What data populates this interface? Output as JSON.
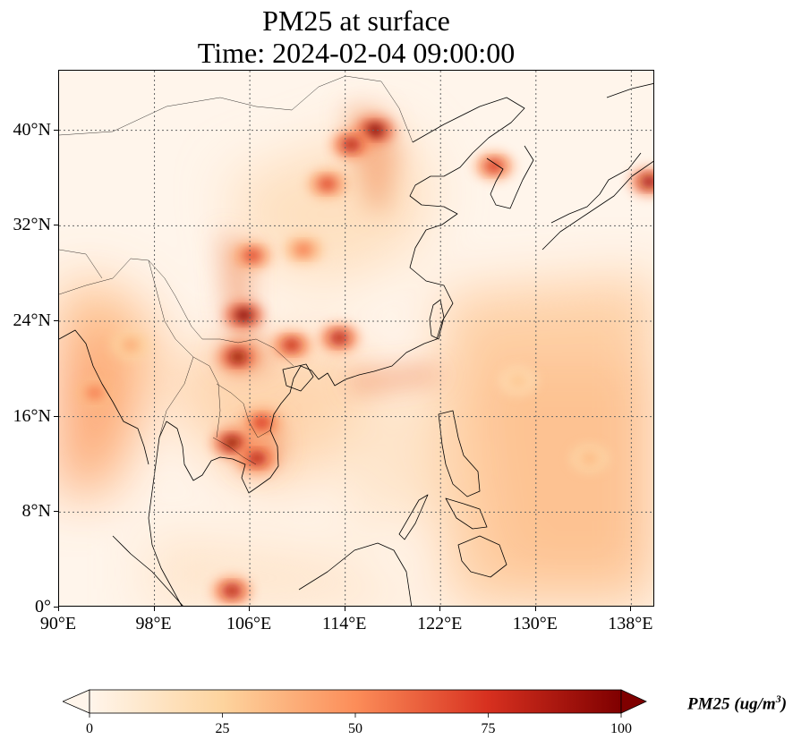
{
  "title": {
    "line1": "PM25 at surface",
    "line2": "Time: 2024-02-04 09:00:00"
  },
  "map": {
    "projection": "PlateCarree",
    "extent": {
      "lon_min": 90,
      "lon_max": 140,
      "lat_min": 0,
      "lat_max": 45
    },
    "gridlines": "dotted",
    "lon_ticks": [
      {
        "value": 90,
        "label": "90°E"
      },
      {
        "value": 98,
        "label": "98°E"
      },
      {
        "value": 106,
        "label": "106°E"
      },
      {
        "value": 114,
        "label": "114°E"
      },
      {
        "value": 122,
        "label": "122°E"
      },
      {
        "value": 130,
        "label": "130°E"
      },
      {
        "value": 138,
        "label": "138°E"
      }
    ],
    "lat_ticks": [
      {
        "value": 0,
        "label": "0°"
      },
      {
        "value": 8,
        "label": "8°N"
      },
      {
        "value": 16,
        "label": "16°N"
      },
      {
        "value": 24,
        "label": "24°N"
      },
      {
        "value": 32,
        "label": "32°N"
      },
      {
        "value": 40,
        "label": "40°N"
      }
    ],
    "hotspots": [
      {
        "lon": 116.5,
        "lat": 40.0,
        "value": 100
      },
      {
        "lon": 114.5,
        "lat": 38.8,
        "value": 85
      },
      {
        "lon": 112.5,
        "lat": 35.5,
        "value": 70
      },
      {
        "lon": 105.5,
        "lat": 24.5,
        "value": 100
      },
      {
        "lon": 105.0,
        "lat": 21.0,
        "value": 95
      },
      {
        "lon": 109.5,
        "lat": 22.0,
        "value": 80
      },
      {
        "lon": 113.5,
        "lat": 22.6,
        "value": 85
      },
      {
        "lon": 104.5,
        "lat": 13.8,
        "value": 95
      },
      {
        "lon": 106.6,
        "lat": 12.5,
        "value": 85
      },
      {
        "lon": 107.0,
        "lat": 15.5,
        "value": 75
      },
      {
        "lon": 126.5,
        "lat": 37.0,
        "value": 75
      },
      {
        "lon": 139.5,
        "lat": 35.7,
        "value": 90
      },
      {
        "lon": 104.5,
        "lat": 1.4,
        "value": 85
      },
      {
        "lon": 106.2,
        "lat": 29.5,
        "value": 70
      },
      {
        "lon": 110.5,
        "lat": 30.0,
        "value": 55
      },
      {
        "lon": 93.0,
        "lat": 18.0,
        "value": 55
      },
      {
        "lon": 96.0,
        "lat": 22.0,
        "value": 40
      },
      {
        "lon": 134.5,
        "lat": 12.5,
        "value": 35
      },
      {
        "lon": 128.5,
        "lat": 19.0,
        "value": 30
      }
    ]
  },
  "colorbar": {
    "label_main": "PM25 (ug/m",
    "label_sup": "3",
    "label_close": ")",
    "min": 0,
    "max": 100,
    "extend": "both",
    "colormap": [
      "#fff5eb",
      "#fdd49e",
      "#fc8d59",
      "#d7301f",
      "#7f0000"
    ],
    "ticks": [
      {
        "value": 0,
        "label": "0"
      },
      {
        "value": 25,
        "label": "25"
      },
      {
        "value": 50,
        "label": "50"
      },
      {
        "value": 75,
        "label": "75"
      },
      {
        "value": 100,
        "label": "100"
      }
    ]
  }
}
